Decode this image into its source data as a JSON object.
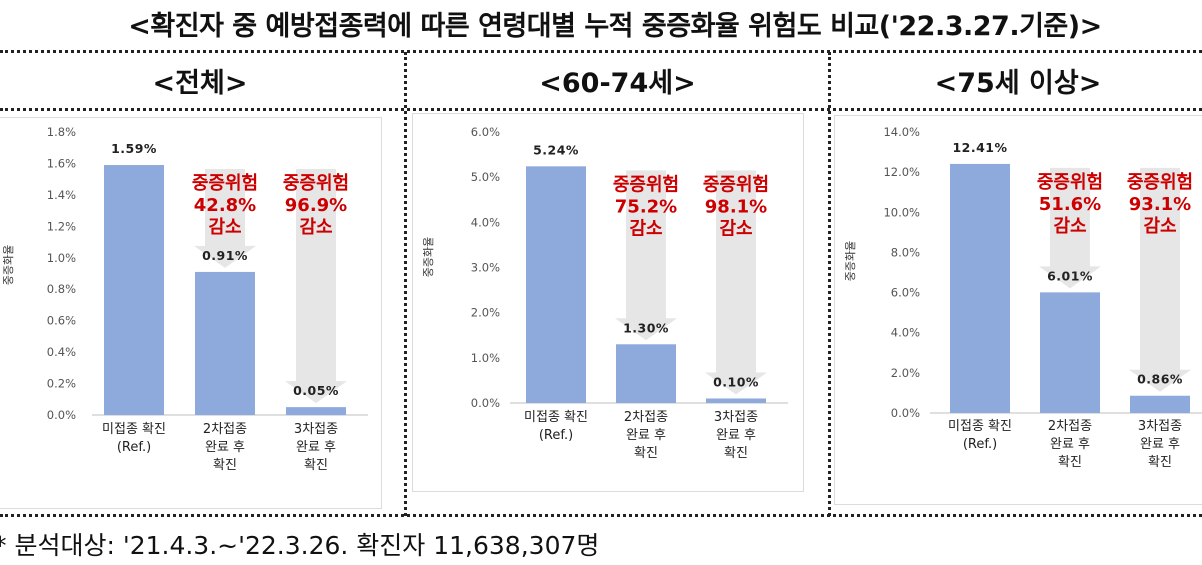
{
  "title": "<확진자 중 예방접종력에 따른 연령대별 누적 중증화율 위험도 비교('22.3.27.기준)>",
  "footnote": "* 분석대상: '21.4.3.~'22.3.26. 확진자 11,638,307명",
  "colors": {
    "bar": "#8EA9DB",
    "annotation": "#CC0000",
    "arrow": "#E6E6E6"
  },
  "chart_data": [
    {
      "type": "bar",
      "title": "<전체>",
      "ylabel": "중증화율",
      "categories": [
        [
          "미접종 확진",
          "(Ref.)"
        ],
        [
          "2차접종",
          "완료 후",
          "확진"
        ],
        [
          "3차접종",
          "완료 후",
          "확진"
        ]
      ],
      "values": [
        1.59,
        0.91,
        0.05
      ],
      "value_labels": [
        "1.59%",
        "0.91%",
        "0.05%"
      ],
      "yticks": [
        "0.0%",
        "0.2%",
        "0.4%",
        "0.6%",
        "0.8%",
        "1.0%",
        "1.2%",
        "1.4%",
        "1.6%",
        "1.8%"
      ],
      "ylim": [
        0,
        1.8
      ],
      "annotations": [
        [
          "중증위험",
          "42.8%",
          "감소"
        ],
        [
          "중증위험",
          "96.9%",
          "감소"
        ]
      ]
    },
    {
      "type": "bar",
      "title": "<60-74세>",
      "ylabel": "중증화율",
      "categories": [
        [
          "미접종 확진",
          "(Ref.)"
        ],
        [
          "2차접종",
          "완료 후",
          "확진"
        ],
        [
          "3차접종",
          "완료 후",
          "확진"
        ]
      ],
      "values": [
        5.24,
        1.3,
        0.1
      ],
      "value_labels": [
        "5.24%",
        "1.30%",
        "0.10%"
      ],
      "yticks": [
        "0.0%",
        "1.0%",
        "2.0%",
        "3.0%",
        "4.0%",
        "5.0%",
        "6.0%"
      ],
      "ylim": [
        0,
        6.0
      ],
      "annotations": [
        [
          "중증위험",
          "75.2%",
          "감소"
        ],
        [
          "중증위험",
          "98.1%",
          "감소"
        ]
      ]
    },
    {
      "type": "bar",
      "title": "<75세 이상>",
      "ylabel": "중증화율",
      "categories": [
        [
          "미접종 확진",
          "(Ref.)"
        ],
        [
          "2차접종",
          "완료 후",
          "확진"
        ],
        [
          "3차접종",
          "완료 후",
          "확진"
        ]
      ],
      "values": [
        12.41,
        6.01,
        0.86
      ],
      "value_labels": [
        "12.41%",
        "6.01%",
        "0.86%"
      ],
      "yticks": [
        "0.0%",
        "2.0%",
        "4.0%",
        "6.0%",
        "8.0%",
        "10.0%",
        "12.0%",
        "14.0%"
      ],
      "ylim": [
        0,
        14.0
      ],
      "annotations": [
        [
          "중증위험",
          "51.6%",
          "감소"
        ],
        [
          "중증위험",
          "93.1%",
          "감소"
        ]
      ]
    }
  ]
}
